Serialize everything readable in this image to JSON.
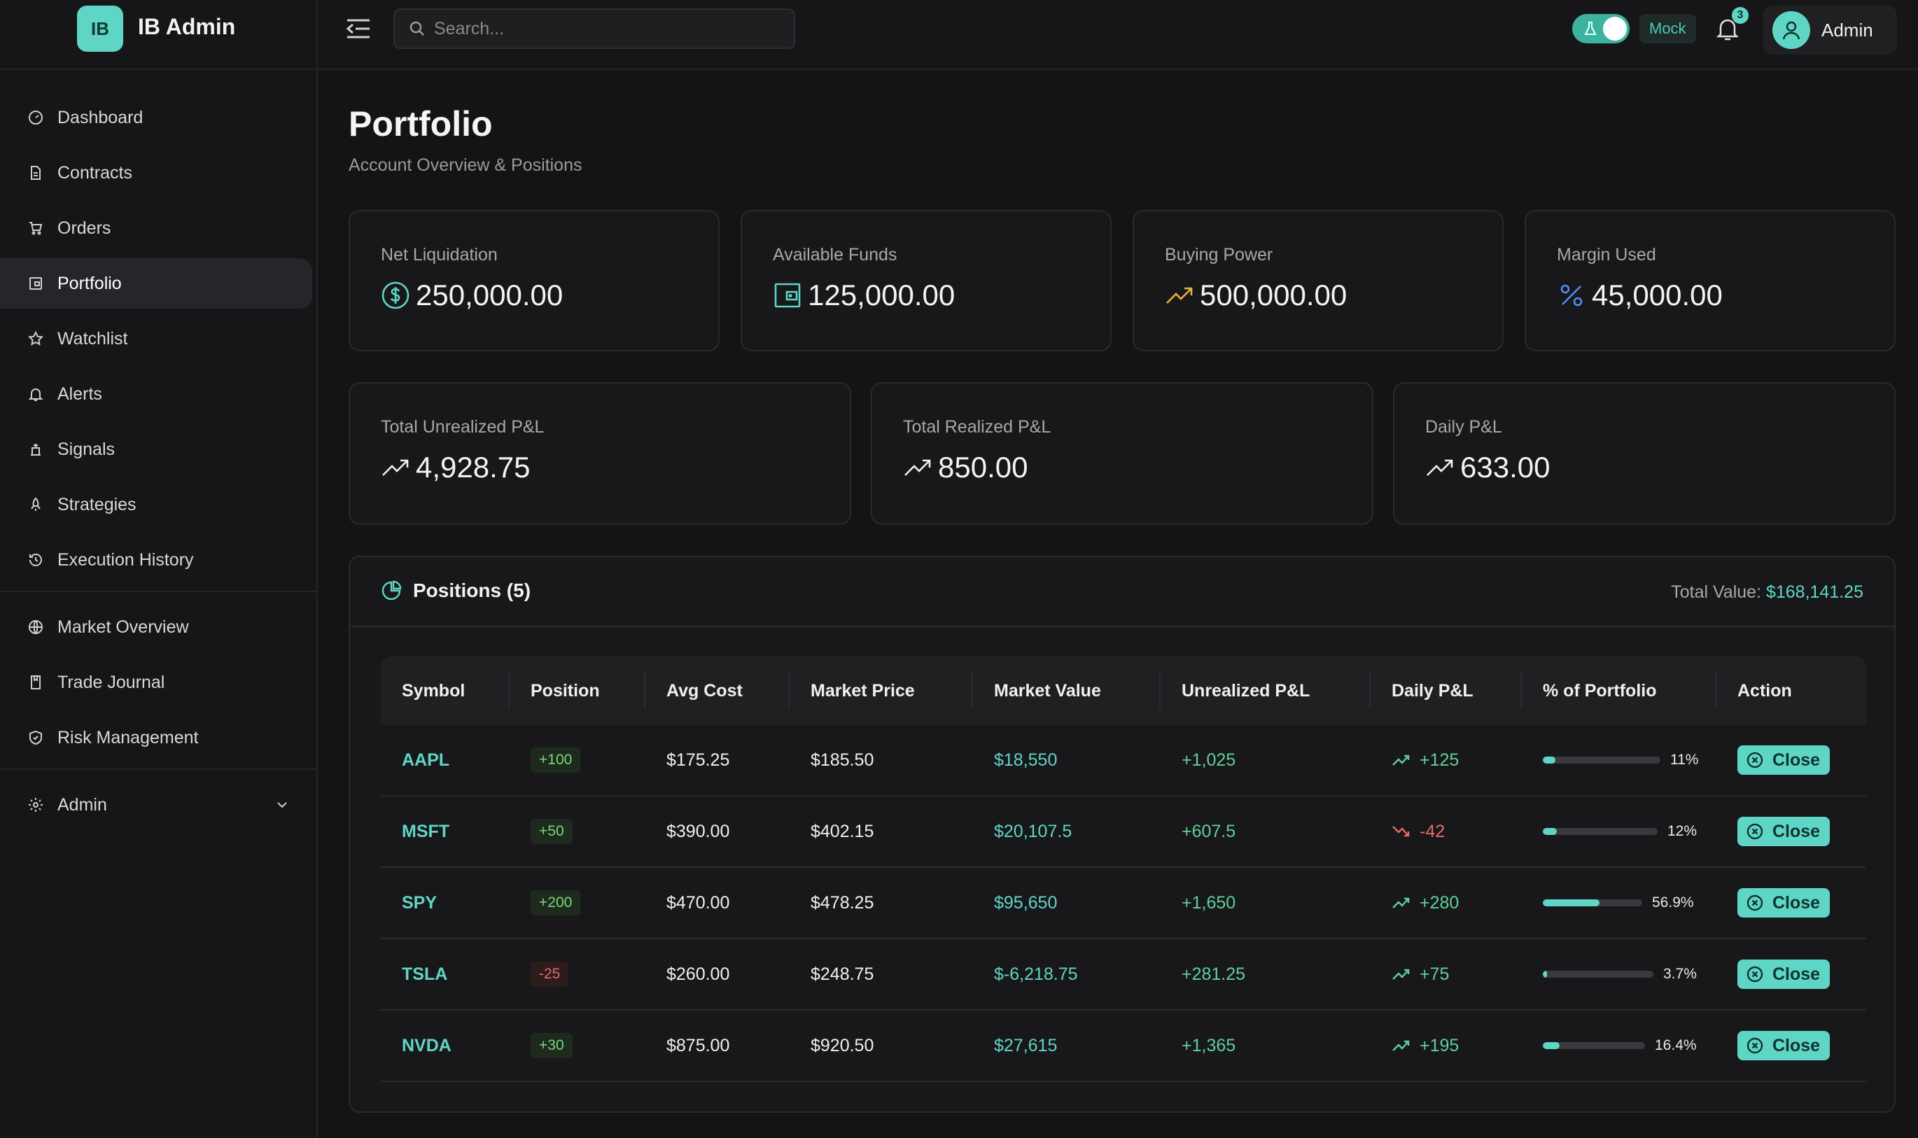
{
  "brand": {
    "logo_text": "IB",
    "name": "IB Admin"
  },
  "sidebar": {
    "items": [
      {
        "label": "Dashboard",
        "icon": "gauge-icon"
      },
      {
        "label": "Contracts",
        "icon": "file-icon"
      },
      {
        "label": "Orders",
        "icon": "cart-icon"
      },
      {
        "label": "Portfolio",
        "icon": "wallet-icon",
        "active": true
      },
      {
        "label": "Watchlist",
        "icon": "star-icon"
      },
      {
        "label": "Alerts",
        "icon": "bell-icon"
      },
      {
        "label": "Signals",
        "icon": "signal-icon"
      },
      {
        "label": "Strategies",
        "icon": "rocket-icon"
      },
      {
        "label": "Execution History",
        "icon": "history-icon"
      },
      {
        "label": "Market Overview",
        "icon": "globe-icon"
      },
      {
        "label": "Trade Journal",
        "icon": "book-icon"
      },
      {
        "label": "Risk Management",
        "icon": "shield-icon"
      },
      {
        "label": "Admin",
        "icon": "gear-icon"
      }
    ]
  },
  "topbar": {
    "search_placeholder": "Search...",
    "mock_label": "Mock",
    "notification_count": "3",
    "user_name": "Admin"
  },
  "page": {
    "title": "Portfolio",
    "subtitle": "Account Overview & Positions"
  },
  "summary": {
    "net_liquidation": {
      "label": "Net Liquidation",
      "value": "250,000.00"
    },
    "available_funds": {
      "label": "Available Funds",
      "value": "125,000.00"
    },
    "buying_power": {
      "label": "Buying Power",
      "value": "500,000.00"
    },
    "margin_used": {
      "label": "Margin Used",
      "value": "45,000.00"
    },
    "unrealized": {
      "label": "Total Unrealized P&L",
      "value": "4,928.75"
    },
    "realized": {
      "label": "Total Realized P&L",
      "value": "850.00"
    },
    "daily": {
      "label": "Daily P&L",
      "value": "633.00"
    }
  },
  "positions": {
    "title": "Positions (5)",
    "total_label": "Total Value:",
    "total_value": "$168,141.25",
    "columns": [
      "Symbol",
      "Position",
      "Avg Cost",
      "Market Price",
      "Market Value",
      "Unrealized P&L",
      "Daily P&L",
      "% of Portfolio",
      "Action"
    ],
    "rows": [
      {
        "symbol": "AAPL",
        "position": "+100",
        "avg_cost": "$175.25",
        "market_price": "$185.50",
        "market_value": "$18,550",
        "unrealized": "+1,025",
        "daily": "+125",
        "daily_up": true,
        "pct": "11%",
        "pct_value": 11,
        "action": "Close"
      },
      {
        "symbol": "MSFT",
        "position": "+50",
        "avg_cost": "$390.00",
        "market_price": "$402.15",
        "market_value": "$20,107.5",
        "unrealized": "+607.5",
        "daily": "-42",
        "daily_up": false,
        "pct": "12%",
        "pct_value": 12,
        "action": "Close"
      },
      {
        "symbol": "SPY",
        "position": "+200",
        "avg_cost": "$470.00",
        "market_price": "$478.25",
        "market_value": "$95,650",
        "unrealized": "+1,650",
        "daily": "+280",
        "daily_up": true,
        "pct": "56.9%",
        "pct_value": 56.9,
        "action": "Close"
      },
      {
        "symbol": "TSLA",
        "position": "-25",
        "avg_cost": "$260.00",
        "market_price": "$248.75",
        "market_value": "$-6,218.75",
        "unrealized": "+281.25",
        "daily": "+75",
        "daily_up": true,
        "pct": "3.7%",
        "pct_value": 3.7,
        "action": "Close"
      },
      {
        "symbol": "NVDA",
        "position": "+30",
        "avg_cost": "$875.00",
        "market_price": "$920.50",
        "market_value": "$27,615",
        "unrealized": "+1,365",
        "daily": "+195",
        "daily_up": true,
        "pct": "16.4%",
        "pct_value": 16.4,
        "action": "Close"
      }
    ]
  },
  "colors": {
    "accent": "#5fd6c5",
    "positive": "#5fcf9a",
    "negative": "#e56a6a",
    "gold": "#e8b53a",
    "blue": "#4f8ff7"
  }
}
